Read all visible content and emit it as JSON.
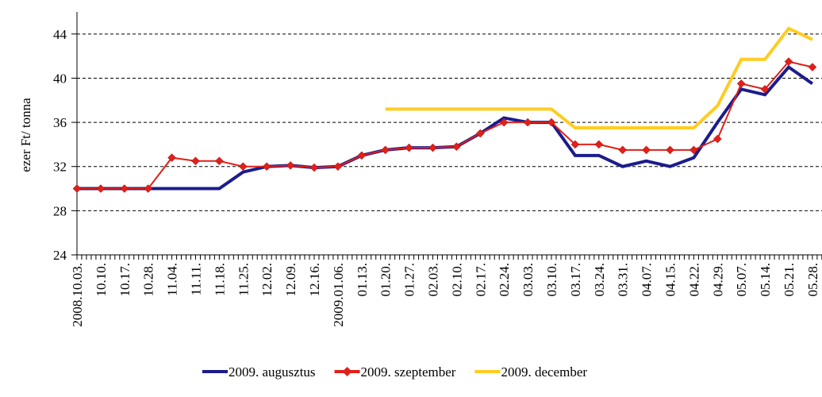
{
  "chart_data": {
    "type": "line",
    "y_label": "ezer Ft/ tonna",
    "categories": [
      "2008.10.03.",
      "10.10.",
      "10.17.",
      "10.28.",
      "11.04.",
      "11.11.",
      "11.18.",
      "11.25.",
      "12.02.",
      "12.09.",
      "12.16.",
      "2009.01.06.",
      "01.13.",
      "01.20.",
      "01.27.",
      "02.03.",
      "02.10.",
      "02.17.",
      "02.24.",
      "03.03.",
      "03.10.",
      "03.17.",
      "03.24.",
      "03.31.",
      "04.07.",
      "04.15.",
      "04.22.",
      "04.29.",
      "05.07.",
      "05.14.",
      "05.21.",
      "05.28."
    ],
    "series": [
      {
        "name": "2009. augusztus",
        "color": "#1c1c8c",
        "values": [
          30,
          30,
          30,
          30,
          30,
          30,
          30,
          31.5,
          32,
          32.1,
          31.9,
          32,
          33,
          33.5,
          33.7,
          33.7,
          33.8,
          35,
          36.4,
          36,
          36,
          33,
          33,
          32,
          32.5,
          32,
          32.8,
          36,
          39,
          38.5,
          41,
          39.5
        ]
      },
      {
        "name": "2009. szeptember",
        "color": "#e0201a",
        "marker": "diamond",
        "values": [
          30,
          30,
          30,
          30,
          32.8,
          32.5,
          32.5,
          32,
          32,
          32.1,
          31.9,
          32,
          33,
          33.5,
          33.7,
          33.7,
          33.8,
          35,
          36,
          36,
          36,
          34,
          34,
          33.5,
          33.5,
          33.5,
          33.5,
          34.5,
          39.5,
          39,
          41.5,
          41
        ]
      },
      {
        "name": "2009. december",
        "color": "#ffcc22",
        "values": [
          null,
          null,
          null,
          null,
          null,
          null,
          null,
          null,
          null,
          null,
          null,
          null,
          null,
          37.2,
          37.2,
          37.2,
          37.2,
          37.2,
          37.2,
          37.2,
          37.2,
          35.5,
          35.5,
          35.5,
          35.5,
          35.5,
          35.5,
          37.5,
          41.7,
          41.7,
          44.5,
          43.5
        ]
      }
    ],
    "ylim": [
      24,
      46
    ],
    "yticks": [
      24,
      28,
      32,
      36,
      40,
      44
    ],
    "grid": true,
    "legend": "bottom"
  }
}
